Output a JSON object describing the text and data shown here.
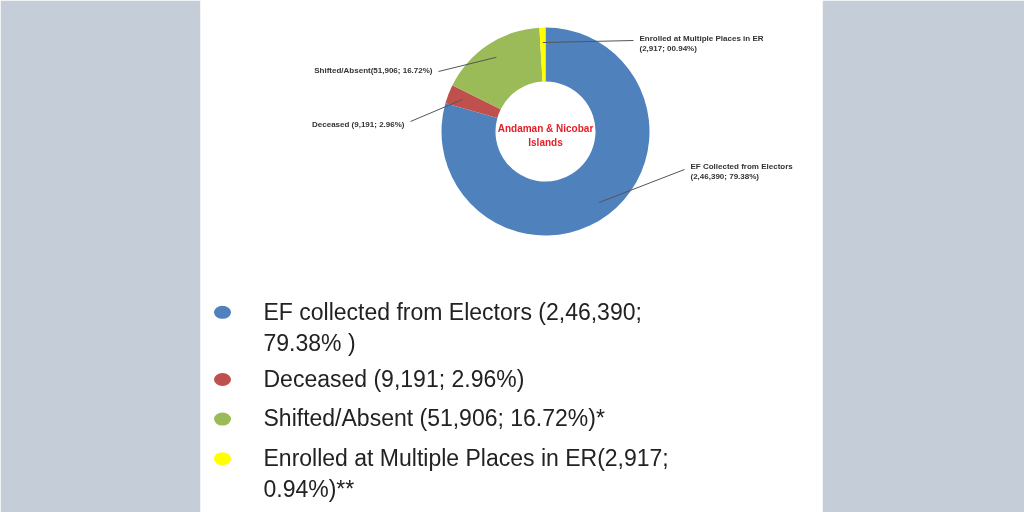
{
  "chart_data": {
    "type": "donut",
    "title": "Andaman & Nicobar Islands",
    "categories": [
      "EF collected from Electors (2,46,390; 79.38% )",
      "Deceased (9,191; 2.96%)",
      "Shifted/Absent (51,906; 16.72%)*",
      "Enrolled at Multiple Places in ER(2,917; 0.94%)**"
    ],
    "values": [
      246390,
      9191,
      51906,
      2917
    ],
    "colors": [
      "#4f81bd",
      "#c0504d",
      "#9bbb59",
      "#ffff00"
    ],
    "value_labels": [
      "EF Collected from Electors (2,46,390; 79.38%)",
      "Deceased (9,191; 2.96%)",
      "Shifted/Absent(51,906; 16.72%)",
      "Enrolled at Multiple Places in ER (2,917; 00.94%)"
    ],
    "legend": "bottom"
  }
}
